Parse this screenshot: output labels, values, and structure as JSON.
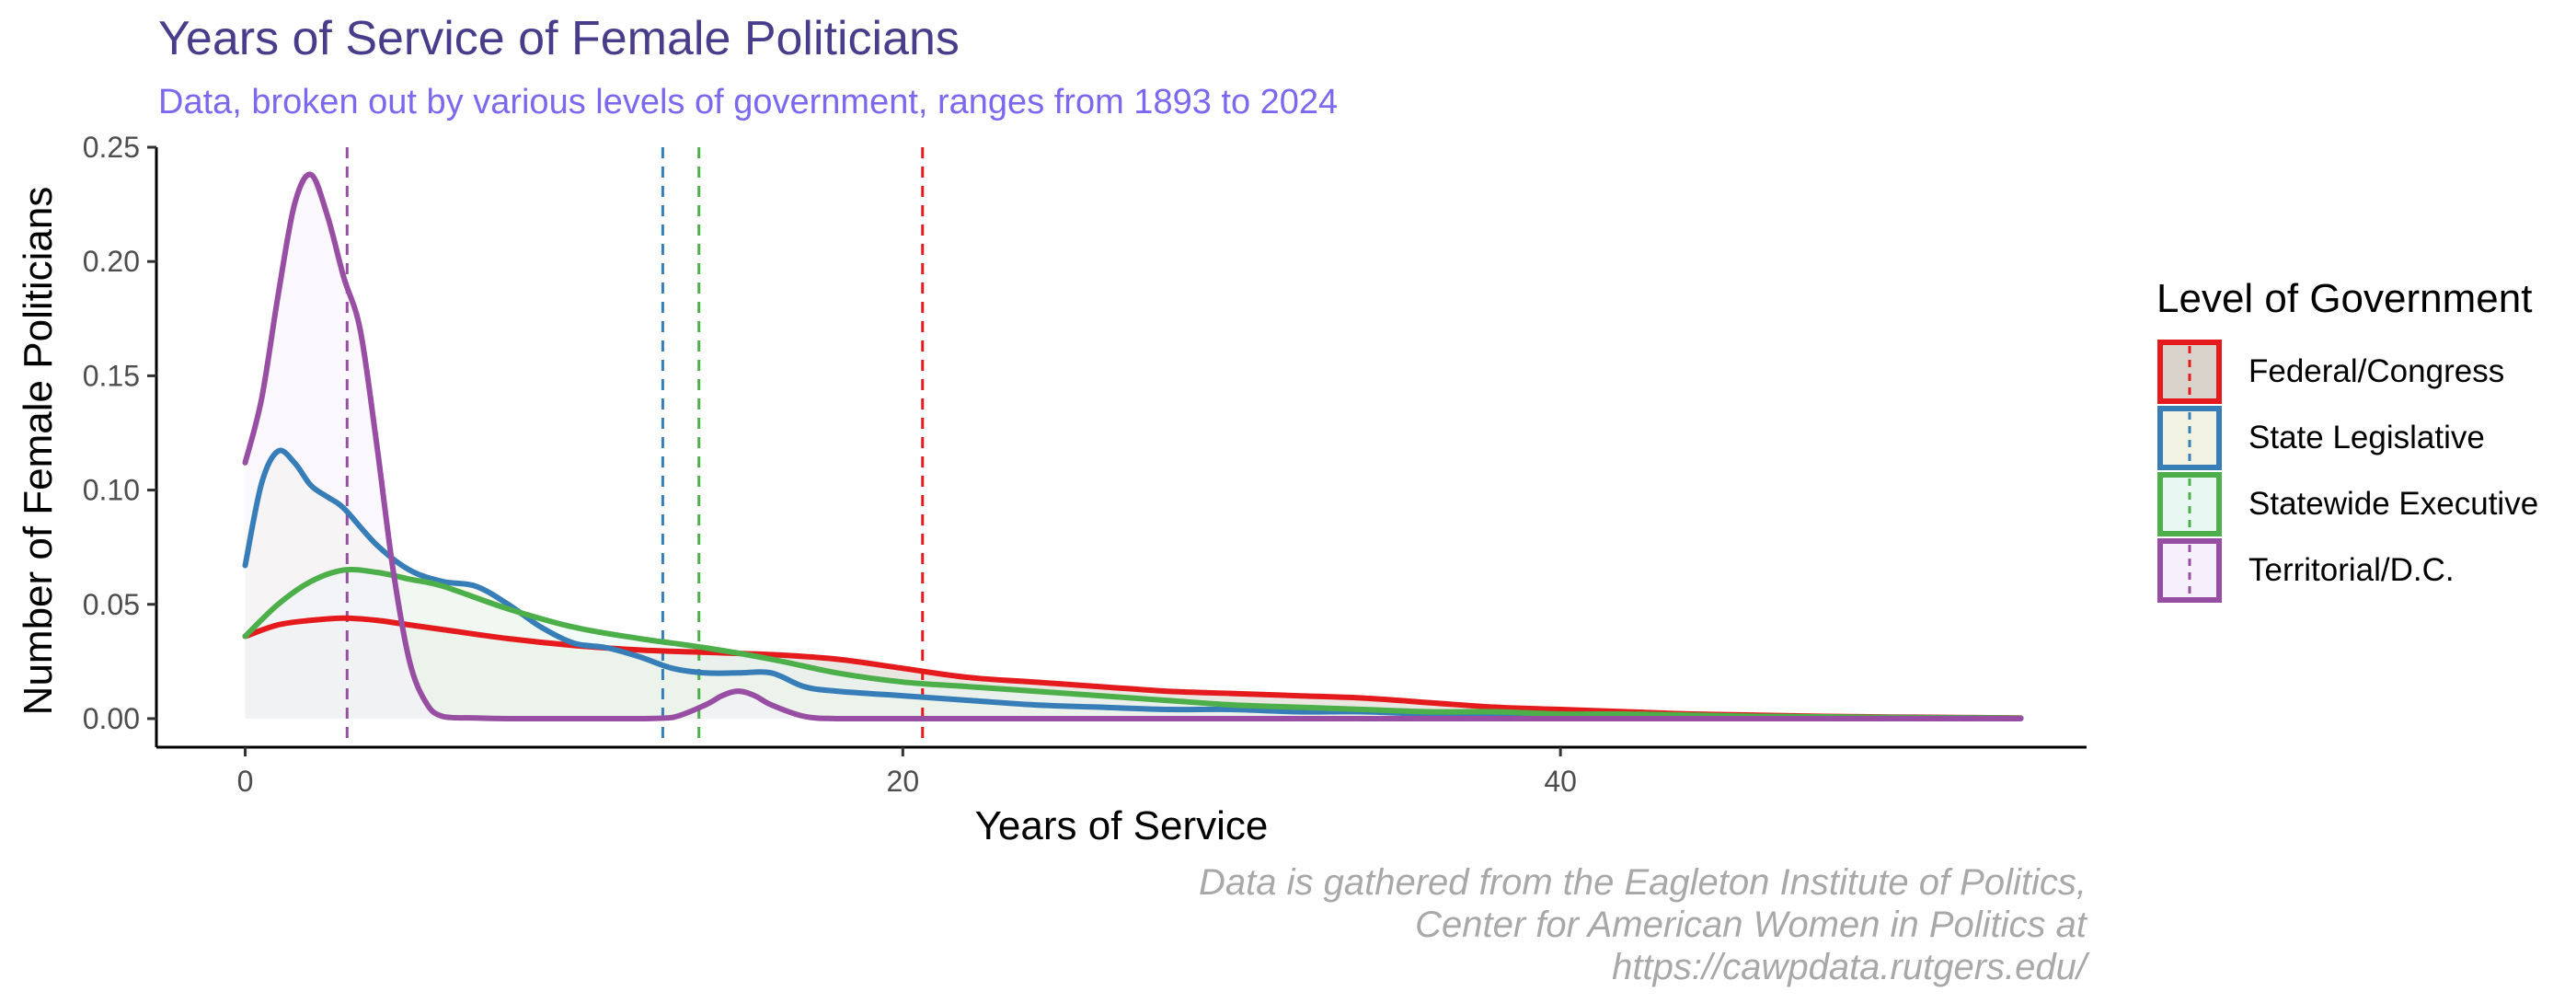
{
  "chart_data": {
    "type": "area",
    "title": "Years of Service of Female Politicians",
    "subtitle": "Data, broken out by various levels of government, ranges from 1893 to 2024",
    "xlabel": "Years of Service",
    "ylabel": "Number of Female Politicians",
    "xlim": [
      -2.7,
      56
    ],
    "ylim": [
      -0.0125,
      0.25
    ],
    "x_ticks": [
      0,
      20,
      40
    ],
    "x_tick_labels": [
      "0",
      "20",
      "40"
    ],
    "y_ticks": [
      0.0,
      0.05,
      0.1,
      0.15,
      0.2,
      0.25
    ],
    "y_tick_labels": [
      "0.00",
      "0.05",
      "0.10",
      "0.15",
      "0.20",
      "0.25"
    ],
    "grid": false,
    "legend": {
      "title": "Level of Government",
      "placement": "right"
    },
    "series": [
      {
        "name": "Federal/Congress",
        "color": "#E41A1C",
        "fill": "#d9d3cc",
        "mean_line": 20.6,
        "x": [
          0,
          1,
          2,
          3,
          4,
          5,
          6,
          8,
          10,
          12,
          14,
          16,
          18,
          20,
          22,
          24,
          26,
          28,
          30,
          32,
          34,
          36,
          38,
          40,
          42,
          44,
          46,
          48,
          50,
          52,
          54
        ],
        "y": [
          0.036,
          0.041,
          0.043,
          0.044,
          0.043,
          0.041,
          0.039,
          0.035,
          0.032,
          0.03,
          0.029,
          0.028,
          0.026,
          0.022,
          0.018,
          0.016,
          0.014,
          0.012,
          0.011,
          0.01,
          0.009,
          0.007,
          0.005,
          0.004,
          0.003,
          0.002,
          0.0015,
          0.001,
          0.0007,
          0.0005,
          0.0003
        ]
      },
      {
        "name": "State Legislative",
        "color": "#377EB8",
        "fill": "#f2f2e2",
        "mean_line": 12.7,
        "x": [
          0,
          0.5,
          1,
          1.5,
          2,
          2.5,
          3,
          4,
          5,
          6,
          7,
          8,
          9,
          10,
          11,
          12,
          13,
          14,
          15,
          16,
          17,
          18,
          20,
          22,
          24,
          26,
          28,
          30,
          32,
          34,
          36,
          38,
          40,
          45,
          50,
          54
        ],
        "y": [
          0.067,
          0.103,
          0.117,
          0.112,
          0.102,
          0.097,
          0.092,
          0.076,
          0.065,
          0.06,
          0.058,
          0.05,
          0.04,
          0.033,
          0.031,
          0.027,
          0.022,
          0.02,
          0.02,
          0.02,
          0.014,
          0.012,
          0.01,
          0.008,
          0.006,
          0.005,
          0.004,
          0.004,
          0.003,
          0.003,
          0.002,
          0.002,
          0.0015,
          0.001,
          0.0005,
          0.0002
        ]
      },
      {
        "name": "Statewide Executive",
        "color": "#4DAF4A",
        "fill": "#e9f7f2",
        "mean_line": 13.8,
        "x": [
          0,
          1,
          2,
          3,
          4,
          5,
          6,
          8,
          10,
          12,
          14,
          16,
          18,
          20,
          22,
          24,
          26,
          28,
          30,
          32,
          34,
          36,
          38,
          40,
          42,
          44,
          46,
          48,
          50,
          52,
          54
        ],
        "y": [
          0.036,
          0.05,
          0.06,
          0.065,
          0.064,
          0.061,
          0.058,
          0.048,
          0.04,
          0.035,
          0.031,
          0.026,
          0.02,
          0.016,
          0.014,
          0.012,
          0.01,
          0.008,
          0.006,
          0.005,
          0.004,
          0.003,
          0.003,
          0.002,
          0.002,
          0.0015,
          0.001,
          0.0008,
          0.0005,
          0.0003,
          0.0002
        ]
      },
      {
        "name": "Territorial/D.C.",
        "color": "#984EA3",
        "fill": "#f6f0fc",
        "mean_line": 3.1,
        "x": [
          0,
          0.5,
          1,
          1.5,
          2,
          2.5,
          3,
          3.5,
          4,
          4.5,
          5,
          5.5,
          6,
          7,
          8,
          10,
          12,
          13,
          14,
          14.5,
          15,
          15.5,
          16,
          17,
          18,
          20,
          25,
          30,
          35,
          40,
          45,
          50,
          54
        ],
        "y": [
          0.112,
          0.14,
          0.185,
          0.225,
          0.238,
          0.22,
          0.193,
          0.17,
          0.12,
          0.065,
          0.025,
          0.007,
          0.001,
          0.0003,
          0.0,
          0.0,
          0.0,
          0.0005,
          0.006,
          0.01,
          0.012,
          0.01,
          0.006,
          0.001,
          0.0,
          0.0,
          0.0,
          0.0,
          0.0,
          0.0,
          0.0,
          0.0,
          0.0
        ]
      }
    ]
  },
  "caption": [
    "Data is gathered from the Eagleton Institute of Politics,",
    "Center for American Women in Politics at",
    "https://cawpdata.rutgers.edu/"
  ]
}
